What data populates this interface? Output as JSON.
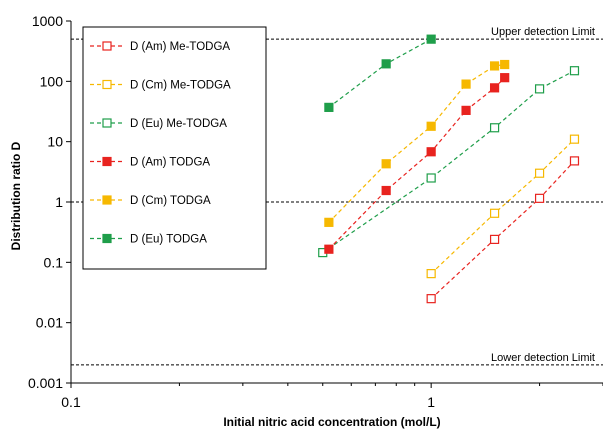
{
  "chart_data": {
    "type": "scatter",
    "xlabel": "Initial nitric acid concentration (mol/L)",
    "ylabel": "Distribution ratio D",
    "x_scale": "log",
    "y_scale": "log",
    "xlim": [
      0.1,
      3
    ],
    "ylim": [
      0.001,
      1000
    ],
    "x_ticks": [
      {
        "value": 0.1,
        "label": "0.1"
      },
      {
        "value": 1,
        "label": "1"
      }
    ],
    "y_ticks": [
      {
        "value": 0.001,
        "label": "0.001"
      },
      {
        "value": 0.01,
        "label": "0.01"
      },
      {
        "value": 0.1,
        "label": "0.1"
      },
      {
        "value": 1,
        "label": "1"
      },
      {
        "value": 10,
        "label": "10"
      },
      {
        "value": 100,
        "label": "100"
      },
      {
        "value": 1000,
        "label": "1000"
      }
    ],
    "grid": false,
    "legend_position": "top-left",
    "reference_lines": [
      {
        "y": 500,
        "label": "Upper detection Limit"
      },
      {
        "y": 1,
        "label": ""
      },
      {
        "y": 0.002,
        "label": "Lower detection Limit"
      }
    ],
    "series": [
      {
        "name": "D (Am) Me-TODGA",
        "color": "#e8231f",
        "marker": "open-square",
        "line": "dashed",
        "x": [
          1.0,
          1.5,
          2.0,
          2.5
        ],
        "y": [
          0.025,
          0.24,
          1.15,
          4.8
        ]
      },
      {
        "name": "D (Cm) Me-TODGA",
        "color": "#f6b800",
        "marker": "open-square",
        "line": "dashed",
        "x": [
          1.0,
          1.5,
          2.0,
          2.5
        ],
        "y": [
          0.065,
          0.65,
          3.0,
          11
        ]
      },
      {
        "name": "D (Eu) Me-TODGA",
        "color": "#1f9e4a",
        "marker": "open-square",
        "line": "dashed",
        "x": [
          0.5,
          1.0,
          1.5,
          2.0,
          2.5
        ],
        "y": [
          0.145,
          2.5,
          17,
          75,
          150
        ]
      },
      {
        "name": "D (Am) TODGA",
        "color": "#e8231f",
        "marker": "filled-square",
        "line": "dashed",
        "x": [
          0.52,
          0.75,
          1.0,
          1.25,
          1.5,
          1.6
        ],
        "y": [
          0.165,
          1.55,
          6.8,
          33,
          78,
          115
        ]
      },
      {
        "name": "D (Cm) TODGA",
        "color": "#f6b800",
        "marker": "filled-square",
        "line": "dashed",
        "x": [
          0.52,
          0.75,
          1.0,
          1.25,
          1.5,
          1.6
        ],
        "y": [
          0.46,
          4.3,
          18,
          90,
          180,
          190
        ]
      },
      {
        "name": "D (Eu) TODGA",
        "color": "#1f9e4a",
        "marker": "filled-square",
        "line": "dashed",
        "x": [
          0.52,
          0.75,
          1.0
        ],
        "y": [
          37,
          195,
          500
        ]
      }
    ]
  }
}
